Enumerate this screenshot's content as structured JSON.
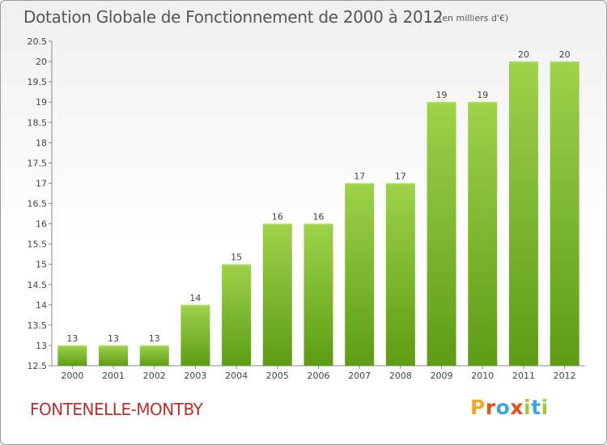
{
  "header": {
    "title": "Dotation Globale de Fonctionnement de 2000 à 2012",
    "unit": "(en milliers d'€)"
  },
  "commune": "FONTENELLE-MONTBY",
  "logo": {
    "letters": [
      "P",
      "r",
      "o",
      "x",
      "i",
      "t",
      "i"
    ],
    "colors": [
      "#f5a623",
      "#e94e1b",
      "#3aa6dd",
      "#e94e1b",
      "#9ccc3d",
      "#3aa6dd",
      "#9ccc3d"
    ]
  },
  "chart_data": {
    "type": "bar",
    "title": "Dotation Globale de Fonctionnement de 2000 à 2012",
    "categories": [
      "2000",
      "2001",
      "2002",
      "2003",
      "2004",
      "2005",
      "2006",
      "2007",
      "2008",
      "2009",
      "2010",
      "2011",
      "2012"
    ],
    "values": [
      13,
      13,
      13,
      14,
      15,
      16,
      16,
      17,
      17,
      19,
      19,
      20,
      20
    ],
    "ylim": [
      12.5,
      20.5
    ],
    "yticks": [
      "12.5",
      "13",
      "13.5",
      "14",
      "14.5",
      "15",
      "15.5",
      "16",
      "16.5",
      "17",
      "17.5",
      "18",
      "18.5",
      "19",
      "19.5",
      "20",
      "20.5"
    ],
    "grid": false,
    "bar_color": "#8cc63e"
  }
}
